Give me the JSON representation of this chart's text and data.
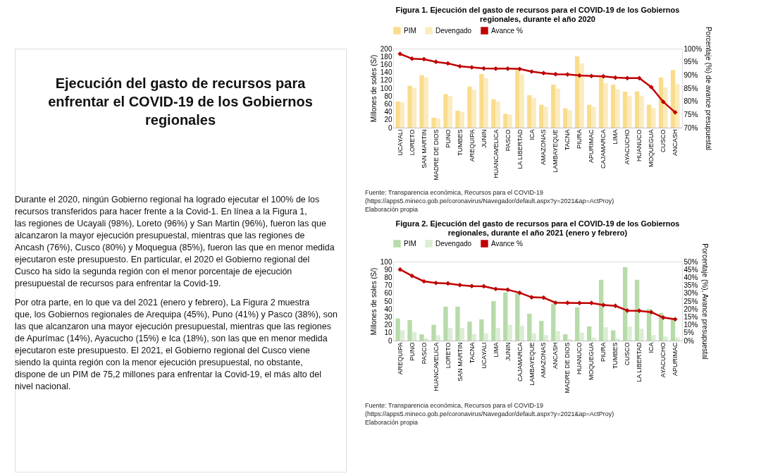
{
  "chart_data": [
    {
      "type": "other",
      "title": "Ejecución del gasto de recursos para enfrentar el COVID-19 de los Gobiernos regionales",
      "annotations": [
        "Durante el 2020, ningún Gobierno regional ha logrado ejecutar el 100% de los recursos transferidos para hacer frente a la Covid-1. En línea a la Figura 1, las regiones de Ucayali (98%), Loreto (96%) y San Martin (96%), fueron las que alcanzaron la mayor ejecución presupuestal, mientras que las regiones de Ancash (76%), Cusco (80%) y Moquegua (85%), fueron las que en menor medida ejecutaron este presupuesto. En particular, el 2020 el Gobierno regional del Cusco ha sido la segunda región con el menor porcentaje de ejecución presupuestal de recursos para enfrentar la Covid-19.",
        "Por otra parte, en lo que va del 2021 (enero y febrero), La Figura 2 muestra que, los Gobiernos regionales de Arequipa (45%), Puno (41%) y Pasco (38%), son las que alcanzaron una mayor ejecución presupuestal, mientras que las regiones de Apurímac (14%), Ayacucho (15%) e Ica (18%), son las que en menor medida ejecutaron este presupuesto. El 2021, el Gobierno regional del Cusco viene siendo la quinta región con la menor ejecución presupuestal, no obstante, dispone de un PIM de 75,2 millones para enfrentar la Covid-19, el más alto del nivel nacional."
      ]
    },
    {
      "type": "bar",
      "title": "Figura 1. Ejecución del gasto de recursos para el COVID-19 de los Gobiernos regionales, durante el año 2020",
      "ylabel": "Millones de soles (S/)",
      "y2label": "Porcentaje (%) de avance presupuestal",
      "legend": "top",
      "marker": "diamond",
      "line_style": "solid",
      "grid": false,
      "categories": [
        "UCAYALI",
        "LORETO",
        "SAN MARTIN",
        "MADRE DE DIOS",
        "PUNO",
        "TUMBES",
        "AREQUIPA",
        "JUNIN",
        "HUANCAVELICA",
        "PASCO",
        "LA LIBERTAD",
        "ICA",
        "AMAZONAS",
        "LAMBAYEQUE",
        "TACNA",
        "PIURA",
        "APURIMAC",
        "CAJAMARCA",
        "LIMA",
        "AYACUCHO",
        "HUANUCO",
        "MOQUEGUA",
        "CUSCO",
        "ANCASH"
      ],
      "ylim": [
        0,
        200
      ],
      "yticks": [
        0,
        20,
        40,
        60,
        80,
        100,
        120,
        140,
        160,
        180,
        200
      ],
      "y2lim": [
        70,
        100
      ],
      "y2ticks": [
        {
          "value": 70,
          "label": "70%"
        },
        {
          "value": 75,
          "label": "75%"
        },
        {
          "value": 80,
          "label": "80%"
        },
        {
          "value": 85,
          "label": "85%"
        },
        {
          "value": 90,
          "label": "90%"
        },
        {
          "value": 95,
          "label": "95%"
        },
        {
          "value": 100,
          "label": "100%"
        }
      ],
      "series": [
        {
          "name": "PIM",
          "type": "bar",
          "color": "#f9dc8c",
          "values": [
            66,
            106,
            133,
            25,
            85,
            43,
            104,
            136,
            72,
            35,
            146,
            82,
            58,
            109,
            49,
            181,
            58,
            128,
            109,
            91,
            92,
            58,
            127,
            146
          ]
        },
        {
          "name": "Devengado",
          "type": "bar",
          "color": "#fcebbd",
          "values": [
            65,
            101,
            127,
            23,
            80,
            40,
            96,
            125,
            66,
            33,
            135,
            75,
            53,
            99,
            44,
            163,
            53,
            113,
            97,
            80,
            81,
            49,
            102,
            110
          ]
        },
        {
          "name": "Avance %",
          "type": "line",
          "axis": "y2",
          "color": "#c00000",
          "values": [
            98,
            96.2,
            96,
            95,
            94.4,
            93.3,
            92.9,
            92.5,
            92.4,
            92.4,
            92.3,
            91.3,
            90.7,
            90.3,
            90.2,
            89.8,
            89.6,
            89.5,
            89,
            88.8,
            88.8,
            85.4,
            79.8,
            75.8
          ]
        }
      ],
      "annotations": [
        "Fuente: Transparencia económica, Recursos para el COVID-19",
        "(https://apps5.mineco.gob.pe/coronavirus/Navegador/default.aspx?y=2021&ap=ActProy)",
        "Elaboración propia"
      ]
    },
    {
      "type": "bar",
      "title": "Figura 2. Ejecución del gasto de recursos para el COVID-19 de los Gobiernos regionales, durante el año 2021 (enero y febrero)",
      "ylabel": "Millones de soles (S/)",
      "y2label": "Porcentaje (%), Avance presupuestal",
      "legend": "top",
      "marker": "diamond",
      "line_style": "solid",
      "grid": false,
      "categories": [
        "AREQUIPA",
        "PUNO",
        "PASCO",
        "HUANCAVELICA",
        "LORETO",
        "SAN MARTIN",
        "TACNA",
        "UCAYALI",
        "LIMA",
        "JUNIN",
        "CAJAMARCA",
        "LAMBAYEQUE",
        "AMAZONAS",
        "ANCASH",
        "MADRE DE DIOS",
        "HUANUCO",
        "MOQUEGUA",
        "PIURA",
        "TUMBES",
        "CUSCO",
        "LA LIBERTAD",
        "ICA",
        "AYACUCHO",
        "APURIMAC"
      ],
      "ylim": [
        0,
        100
      ],
      "yticks": [
        0,
        10,
        20,
        30,
        40,
        50,
        60,
        70,
        80,
        90,
        100
      ],
      "y2lim": [
        0,
        50
      ],
      "y2ticks": [
        {
          "value": 0,
          "label": "0%"
        },
        {
          "value": 5,
          "label": "5%"
        },
        {
          "value": 10,
          "label": "10%"
        },
        {
          "value": 15,
          "label": "15%"
        },
        {
          "value": 20,
          "label": "20%"
        },
        {
          "value": 25,
          "label": "25%"
        },
        {
          "value": 30,
          "label": "30%"
        },
        {
          "value": 35,
          "label": "35%"
        },
        {
          "value": 40,
          "label": "40%"
        },
        {
          "value": 45,
          "label": "45%"
        },
        {
          "value": 50,
          "label": "50%"
        }
      ],
      "series": [
        {
          "name": "PIM",
          "type": "bar",
          "color": "#b7dba9",
          "values": [
            28,
            26,
            8,
            20,
            43,
            43,
            24,
            27,
            50,
            61,
            60,
            34,
            25,
            47,
            8,
            42,
            18,
            77,
            13,
            93,
            77,
            40,
            35,
            27
          ]
        },
        {
          "name": "Devengado",
          "type": "bar",
          "color": "#dbeed3",
          "values": [
            13,
            11,
            3,
            7,
            16,
            16,
            8,
            9,
            16,
            20,
            19,
            9,
            7,
            12,
            2,
            10,
            4,
            17,
            3,
            18,
            15,
            7,
            5,
            4
          ]
        },
        {
          "name": "Avance %",
          "type": "line",
          "axis": "y2",
          "color": "#c00000",
          "values": [
            45,
            41,
            37.5,
            36.5,
            36.2,
            35.2,
            34.5,
            34.4,
            32.7,
            32.2,
            30.3,
            27.4,
            27.2,
            24,
            23.9,
            23.8,
            23.8,
            22.5,
            22,
            19,
            18.9,
            18,
            14.6,
            13.5
          ]
        }
      ],
      "annotations": [
        "Fuente: Transparencia económica, Recursos para el COVID-19",
        "(https://apps5.mineco.gob.pe/coronavirus/Navegador/default.aspx?y=2021&ap=ActProy)",
        "Elaboración propia"
      ]
    }
  ]
}
